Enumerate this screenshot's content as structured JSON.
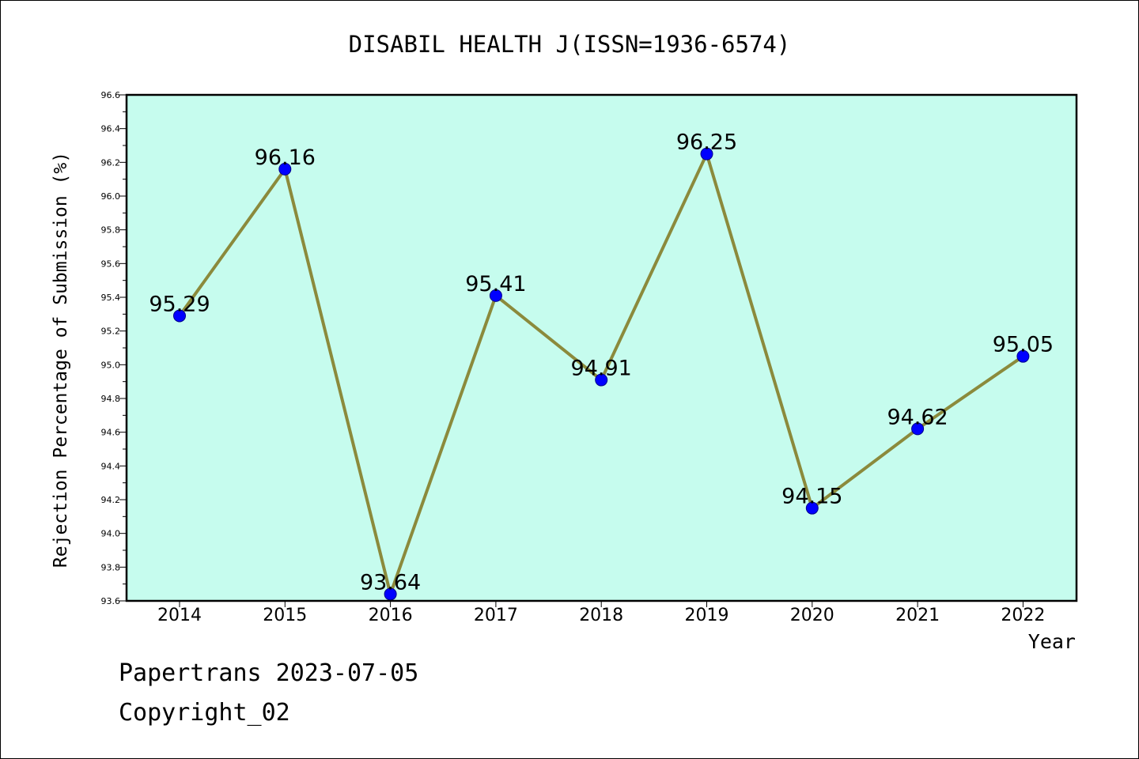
{
  "chart_data": {
    "type": "line",
    "title": "DISABIL HEALTH J(ISSN=1936-6574)",
    "xlabel": "Year",
    "ylabel": "Rejection Percentage of Submission (%)",
    "categories": [
      "2014",
      "2015",
      "2016",
      "2017",
      "2018",
      "2019",
      "2020",
      "2021",
      "2022"
    ],
    "values": [
      95.29,
      96.16,
      93.64,
      95.41,
      94.91,
      96.25,
      94.15,
      94.62,
      95.05
    ],
    "data_labels": [
      "95.29",
      "96.16",
      "93.64",
      "95.41",
      "94.91",
      "96.25",
      "94.15",
      "94.62",
      "95.05"
    ],
    "ylim": [
      93.6,
      96.6
    ],
    "yticks": [
      "93.6",
      "93.8",
      "94.0",
      "94.2",
      "94.4",
      "94.6",
      "94.8",
      "95.0",
      "95.2",
      "95.4",
      "95.6",
      "95.8",
      "96.0",
      "96.2",
      "96.4",
      "96.6"
    ],
    "grid": false,
    "colors": {
      "plot_background": "#c6fcee",
      "line": "#8b8a3c",
      "marker": "#0000ff"
    }
  },
  "footer": {
    "line1": "Papertrans 2023-07-05",
    "line2": "Copyright_02"
  }
}
